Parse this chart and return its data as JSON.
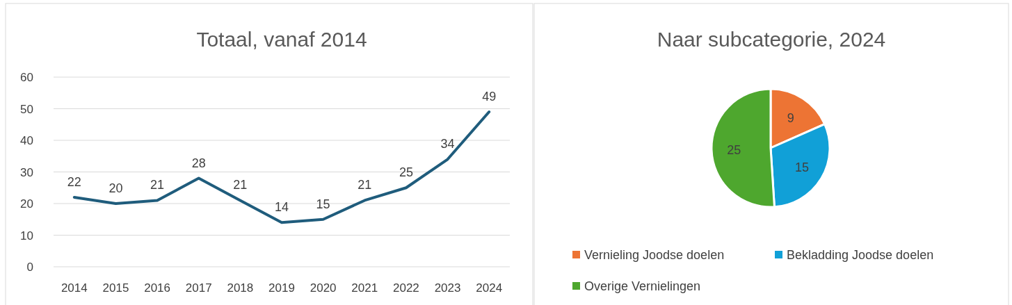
{
  "chart_data": [
    {
      "type": "line",
      "title": "Totaal, vanaf 2014",
      "categories": [
        "2014",
        "2015",
        "2016",
        "2017",
        "2018",
        "2019",
        "2020",
        "2021",
        "2022",
        "2023",
        "2024"
      ],
      "series": [
        {
          "color": "#1f5c7c",
          "values": [
            22,
            20,
            21,
            28,
            21,
            14,
            15,
            21,
            25,
            34,
            49
          ]
        }
      ],
      "ylim": [
        0,
        60
      ],
      "yticks": [
        0,
        10,
        20,
        30,
        40,
        50,
        60
      ],
      "grid": "y",
      "data_labels": true,
      "marker": "none",
      "line_style": "solid"
    },
    {
      "type": "pie",
      "title": "Naar subcategorie, 2024",
      "categories": [
        "Vernieling Joodse doelen",
        "Bekladding Joodse doelen",
        "Overige Vernielingen"
      ],
      "values": [
        9,
        15,
        25
      ],
      "colors": [
        "#ed7434",
        "#11a0d7",
        "#4ea72e"
      ],
      "data_labels": true,
      "legend": "bottom"
    }
  ]
}
